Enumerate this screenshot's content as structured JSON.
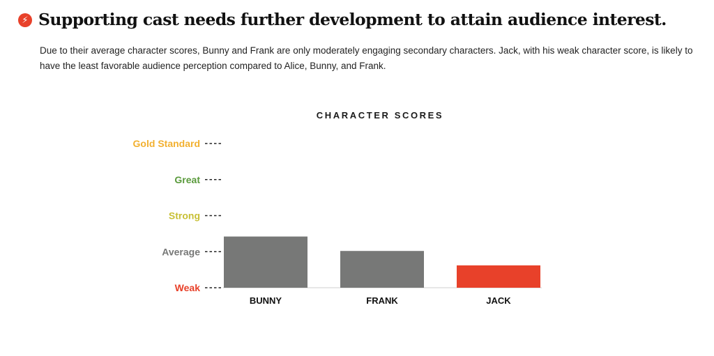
{
  "header": {
    "icon": "lightning-bolt-icon",
    "icon_color": "#e8412a",
    "title": "Supporting cast needs further development to attain audience interest."
  },
  "description": "Due to their average character scores, Bunny and Frank are only moderately engaging secondary characters. Jack, with his weak character score, is likely to have the least favorable audience perception compared to Alice, Bunny, and Frank.",
  "chart_data": {
    "type": "bar",
    "title": "CHARACTER SCORES",
    "categories": [
      "BUNNY",
      "FRANK",
      "JACK"
    ],
    "values": [
      1.42,
      1.02,
      0.62
    ],
    "bar_colors": [
      "#777877",
      "#777877",
      "#e8412a"
    ],
    "ylim": [
      0,
      4
    ],
    "yticks": [
      {
        "value": 0,
        "label": "Weak",
        "color": "#e8412a"
      },
      {
        "value": 1,
        "label": "Average",
        "color": "#777877"
      },
      {
        "value": 2,
        "label": "Strong",
        "color": "#c8c036"
      },
      {
        "value": 3,
        "label": "Great",
        "color": "#5a9a3c"
      },
      {
        "value": 4,
        "label": "Gold Standard",
        "color": "#f2b02f"
      }
    ],
    "grid": false,
    "legend": "none"
  }
}
